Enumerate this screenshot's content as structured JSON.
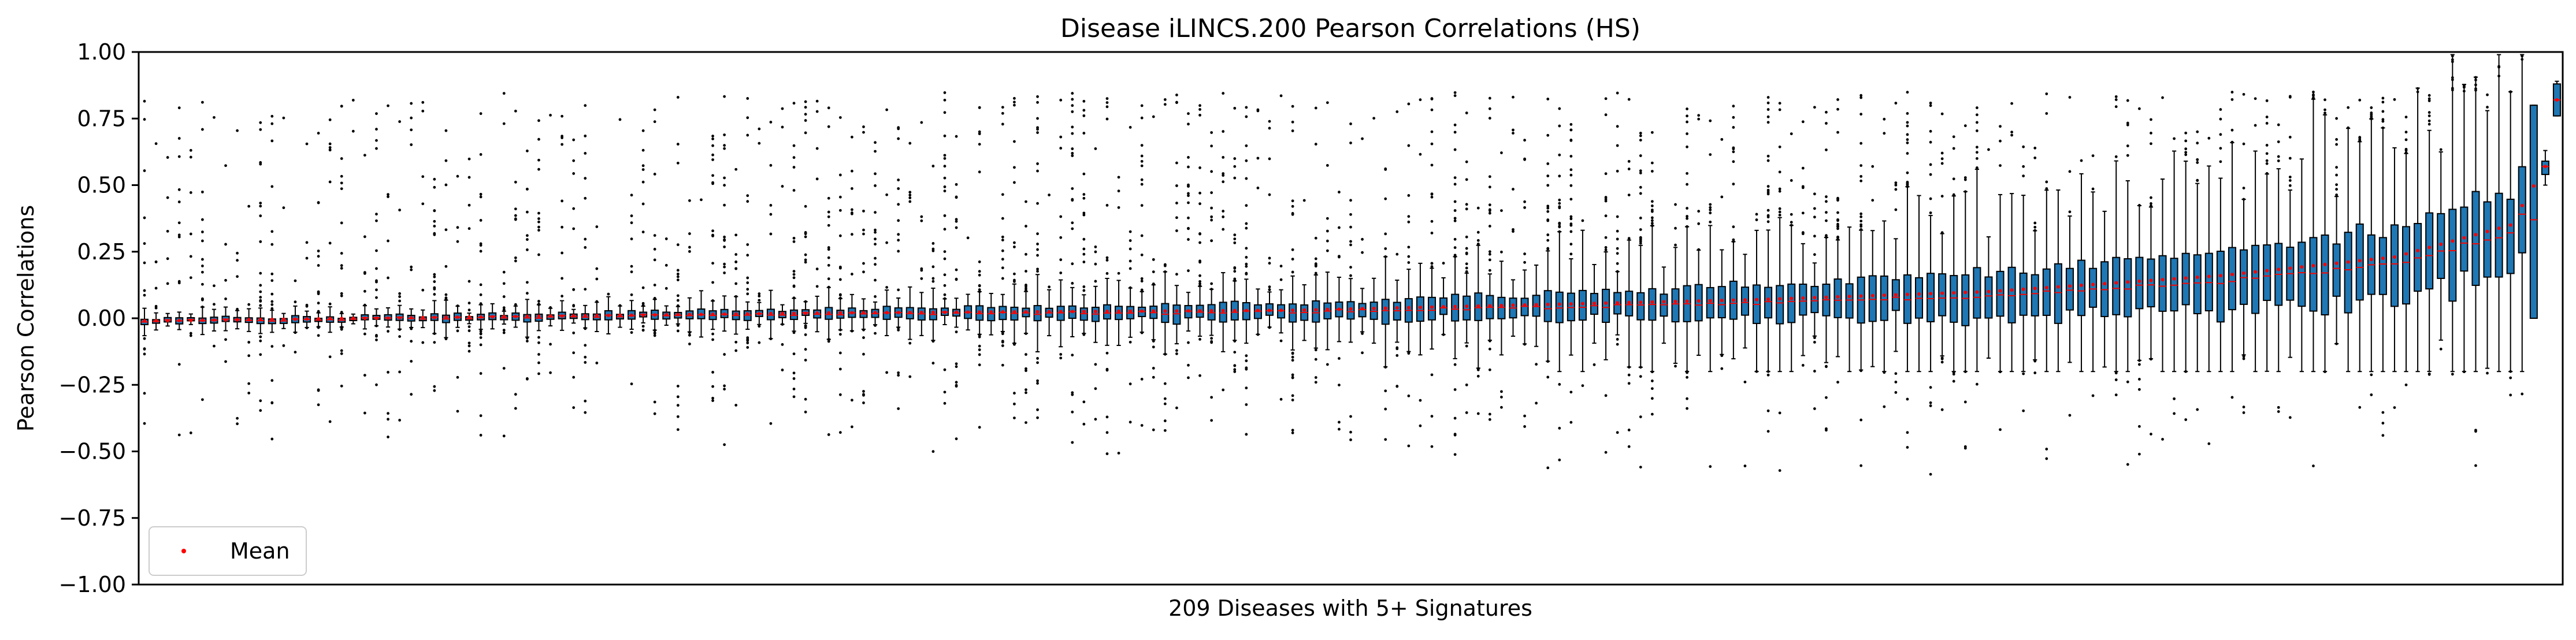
{
  "chart_data": {
    "type": "box",
    "title": "Disease iLINCS.200 Pearson Correlations (HS)",
    "xlabel": "209 Diseases with 5+ Signatures",
    "ylabel": "Pearson Correlations",
    "ylim": [
      -1.0,
      1.0
    ],
    "yticks": [
      "−1.00",
      "−0.75",
      "−0.50",
      "−0.25",
      "0.00",
      "0.25",
      "0.50",
      "0.75",
      "1.00"
    ],
    "ytick_values": [
      -1.0,
      -0.75,
      -0.5,
      -0.25,
      0.0,
      0.25,
      0.5,
      0.75,
      1.0
    ],
    "n_boxes": 209,
    "ordering": "boxes sorted left to right by increasing mean",
    "mean_profile": [
      {
        "rank": 1,
        "mean": -0.01
      },
      {
        "rank": 20,
        "mean": 0.0
      },
      {
        "rank": 40,
        "mean": 0.01
      },
      {
        "rank": 60,
        "mean": 0.02
      },
      {
        "rank": 80,
        "mean": 0.025
      },
      {
        "rank": 100,
        "mean": 0.03
      },
      {
        "rank": 120,
        "mean": 0.05
      },
      {
        "rank": 140,
        "mean": 0.07
      },
      {
        "rank": 160,
        "mean": 0.1
      },
      {
        "rank": 180,
        "mean": 0.16
      },
      {
        "rank": 195,
        "mean": 0.23
      },
      {
        "rank": 205,
        "mean": 0.35
      },
      {
        "rank": 208,
        "mean": 0.57
      },
      {
        "rank": 209,
        "mean": 0.82
      }
    ],
    "last_boxes": [
      {
        "rank": 207,
        "q1": 0.0,
        "median": 0.37,
        "q3": 0.8,
        "whisker_low": 0.0,
        "whisker_high": 0.8
      },
      {
        "rank": 208,
        "q1": 0.54,
        "median": 0.57,
        "q3": 0.59,
        "whisker_low": 0.5,
        "whisker_high": 0.63
      },
      {
        "rank": 209,
        "q1": 0.76,
        "median": 0.82,
        "q3": 0.88,
        "whisker_low": 0.76,
        "whisker_high": 0.89
      }
    ],
    "legend": {
      "position": "lower-left",
      "entries": [
        {
          "label": "Mean",
          "marker": "dot",
          "color": "#ff0000"
        }
      ]
    },
    "colors": {
      "box_fill": "#1f77b4",
      "box_edge": "#000000",
      "median": "#ff0000",
      "mean_marker": "#ff0000",
      "flier": "#000000"
    },
    "grid": false
  }
}
